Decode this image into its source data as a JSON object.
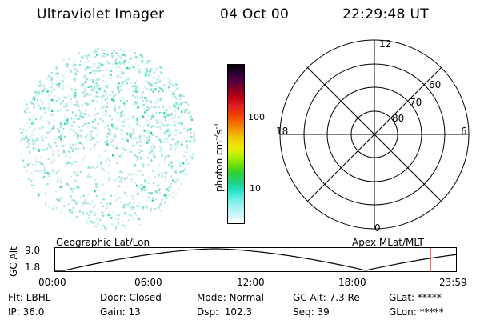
{
  "header": {
    "instrument": "Ultraviolet Imager",
    "date": "04 Oct 00",
    "time": "22:29:48 UT"
  },
  "colorbar": {
    "unit_label": "photon cm-2s-1",
    "ticks": [
      "100",
      "10"
    ],
    "colors": [
      "#000000",
      "#2a0030",
      "#5a0040",
      "#8a0020",
      "#c00010",
      "#e02020",
      "#f04000",
      "#f07000",
      "#f0a000",
      "#f0d000",
      "#e8f000",
      "#b0f000",
      "#70e000",
      "#30d030",
      "#20d080",
      "#20e0c0",
      "#60f0e0",
      "#a0f0f0",
      "#d0f8f8",
      "#ffffff"
    ]
  },
  "polar_plot": {
    "mlt_labels": [
      "12",
      "18",
      "6",
      "0"
    ],
    "lat_labels": [
      "60",
      "70",
      "80"
    ]
  },
  "altitude_plot": {
    "left_title": "Geographic Lat/Lon",
    "right_title": "Apex MLat/MLT",
    "ylabel": "GC Alt",
    "yticks": [
      "9.0",
      "1.8"
    ],
    "xticks": [
      "00:00",
      "06:00",
      "12:00",
      "18:00",
      "23:59"
    ],
    "current_marker_color": "#ff0000"
  },
  "status": {
    "row1": [
      "Flt: LBHL",
      "Door: Closed",
      "Mode: Normal",
      "GC Alt: 7.3 Re",
      "GLat: *****"
    ],
    "row2": [
      "IP: 36.0",
      "Gain: 13",
      "Dsp:  102.3",
      "Seq: 39",
      "GLon: *****"
    ]
  }
}
